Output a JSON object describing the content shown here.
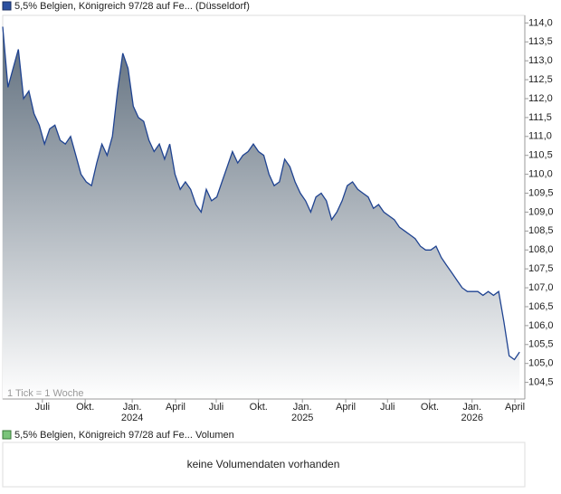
{
  "chart_data": {
    "type": "area",
    "title": "5,5% Belgien, Königreich 97/28 auf Fe... (Düsseldorf)",
    "annotation": "1 Tick = 1 Woche",
    "color": "#1f4391",
    "fill_top": "#5d6c7b",
    "values": [
      113.9,
      112.3,
      112.8,
      113.3,
      112.0,
      112.2,
      111.6,
      111.3,
      110.8,
      111.2,
      111.3,
      110.9,
      110.8,
      111.0,
      110.5,
      110.0,
      109.8,
      109.7,
      110.3,
      110.8,
      110.5,
      111.0,
      112.2,
      113.2,
      112.8,
      111.8,
      111.5,
      111.4,
      110.9,
      110.6,
      110.8,
      110.4,
      110.8,
      110.0,
      109.6,
      109.8,
      109.6,
      109.2,
      109.0,
      109.6,
      109.3,
      109.4,
      109.8,
      110.2,
      110.6,
      110.3,
      110.5,
      110.6,
      110.8,
      110.6,
      110.5,
      110.0,
      109.7,
      109.8,
      110.4,
      110.2,
      109.8,
      109.5,
      109.3,
      109.0,
      109.4,
      109.5,
      109.3,
      108.8,
      109.0,
      109.3,
      109.7,
      109.8,
      109.6,
      109.5,
      109.4,
      109.1,
      109.2,
      109.0,
      108.9,
      108.8,
      108.6,
      108.5,
      108.4,
      108.3,
      108.1,
      108.0,
      108.0,
      108.1,
      107.8,
      107.6,
      107.4,
      107.2,
      107.0,
      106.9,
      106.9,
      106.9,
      106.8,
      106.9,
      106.8,
      106.9,
      106.1,
      105.2,
      105.1,
      105.3
    ],
    "xlim": [
      0,
      100
    ],
    "xticks": [
      {
        "value": 7.6,
        "label": "Juli"
      },
      {
        "value": 15.8,
        "label": "Okt."
      },
      {
        "value": 24.8,
        "label": "Jan.",
        "sublabel": "2024"
      },
      {
        "value": 33.1,
        "label": "April"
      },
      {
        "value": 40.9,
        "label": "Juli"
      },
      {
        "value": 49.0,
        "label": "Okt."
      },
      {
        "value": 57.4,
        "label": "Jan.",
        "sublabel": "2025"
      },
      {
        "value": 65.7,
        "label": "April"
      },
      {
        "value": 73.7,
        "label": "Juli"
      },
      {
        "value": 81.8,
        "label": "Okt."
      },
      {
        "value": 89.9,
        "label": "Jan.",
        "sublabel": "2026"
      },
      {
        "value": 98.1,
        "label": "April"
      }
    ],
    "ylim": [
      104.06,
      114.2
    ],
    "yticks": [
      {
        "value": 114.0,
        "label": "114,0"
      },
      {
        "value": 113.5,
        "label": "113,5"
      },
      {
        "value": 113.0,
        "label": "113,0"
      },
      {
        "value": 112.5,
        "label": "112,5"
      },
      {
        "value": 112.0,
        "label": "112,0"
      },
      {
        "value": 111.5,
        "label": "111,5"
      },
      {
        "value": 111.0,
        "label": "111,0"
      },
      {
        "value": 110.5,
        "label": "110,5"
      },
      {
        "value": 110.0,
        "label": "110,0"
      },
      {
        "value": 109.5,
        "label": "109,5"
      },
      {
        "value": 109.0,
        "label": "109,0"
      },
      {
        "value": 108.5,
        "label": "108,5"
      },
      {
        "value": 108.0,
        "label": "108,0"
      },
      {
        "value": 107.5,
        "label": "107,5"
      },
      {
        "value": 107.0,
        "label": "107,0"
      },
      {
        "value": 106.5,
        "label": "106,5"
      },
      {
        "value": 106.0,
        "label": "106,0"
      },
      {
        "value": 105.5,
        "label": "105,5"
      },
      {
        "value": 105.0,
        "label": "105,0"
      },
      {
        "value": 104.5,
        "label": "104,5"
      }
    ],
    "grid": false
  },
  "volume_panel": {
    "title": "5,5% Belgien, Königreich 97/28 auf Fe... Volumen",
    "message": "keine Volumendaten vorhanden"
  }
}
